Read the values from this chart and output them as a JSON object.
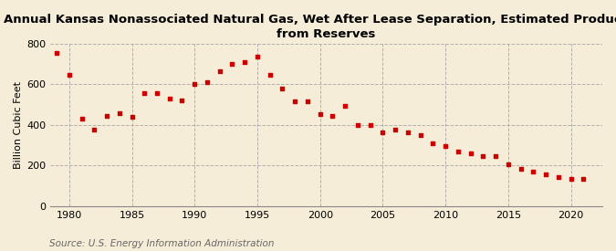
{
  "title": "Annual Kansas Nonassociated Natural Gas, Wet After Lease Separation, Estimated Production\nfrom Reserves",
  "ylabel": "Billion Cubic Feet",
  "source": "Source: U.S. Energy Information Administration",
  "background_color": "#f5edd8",
  "marker_color": "#cc0000",
  "grid_color": "#aaaaaa",
  "years": [
    1979,
    1980,
    1981,
    1982,
    1983,
    1984,
    1985,
    1986,
    1987,
    1988,
    1989,
    1990,
    1991,
    1992,
    1993,
    1994,
    1995,
    1996,
    1997,
    1998,
    1999,
    2000,
    2001,
    2002,
    2003,
    2004,
    2005,
    2006,
    2007,
    2008,
    2009,
    2010,
    2011,
    2012,
    2013,
    2014,
    2015,
    2016,
    2017,
    2018,
    2019,
    2020,
    2021
  ],
  "values": [
    755,
    645,
    430,
    375,
    445,
    460,
    440,
    555,
    555,
    530,
    520,
    600,
    610,
    665,
    700,
    710,
    735,
    645,
    580,
    515,
    515,
    455,
    445,
    495,
    400,
    400,
    365,
    375,
    365,
    350,
    310,
    295,
    270,
    260,
    245,
    245,
    205,
    185,
    170,
    155,
    145,
    135,
    135
  ],
  "xlim": [
    1978.5,
    2022.5
  ],
  "ylim": [
    0,
    800
  ],
  "yticks": [
    0,
    200,
    400,
    600,
    800
  ],
  "xticks": [
    1980,
    1985,
    1990,
    1995,
    2000,
    2005,
    2010,
    2015,
    2020
  ],
  "title_fontsize": 9.5,
  "ylabel_fontsize": 8,
  "tick_fontsize": 8,
  "source_fontsize": 7.5
}
